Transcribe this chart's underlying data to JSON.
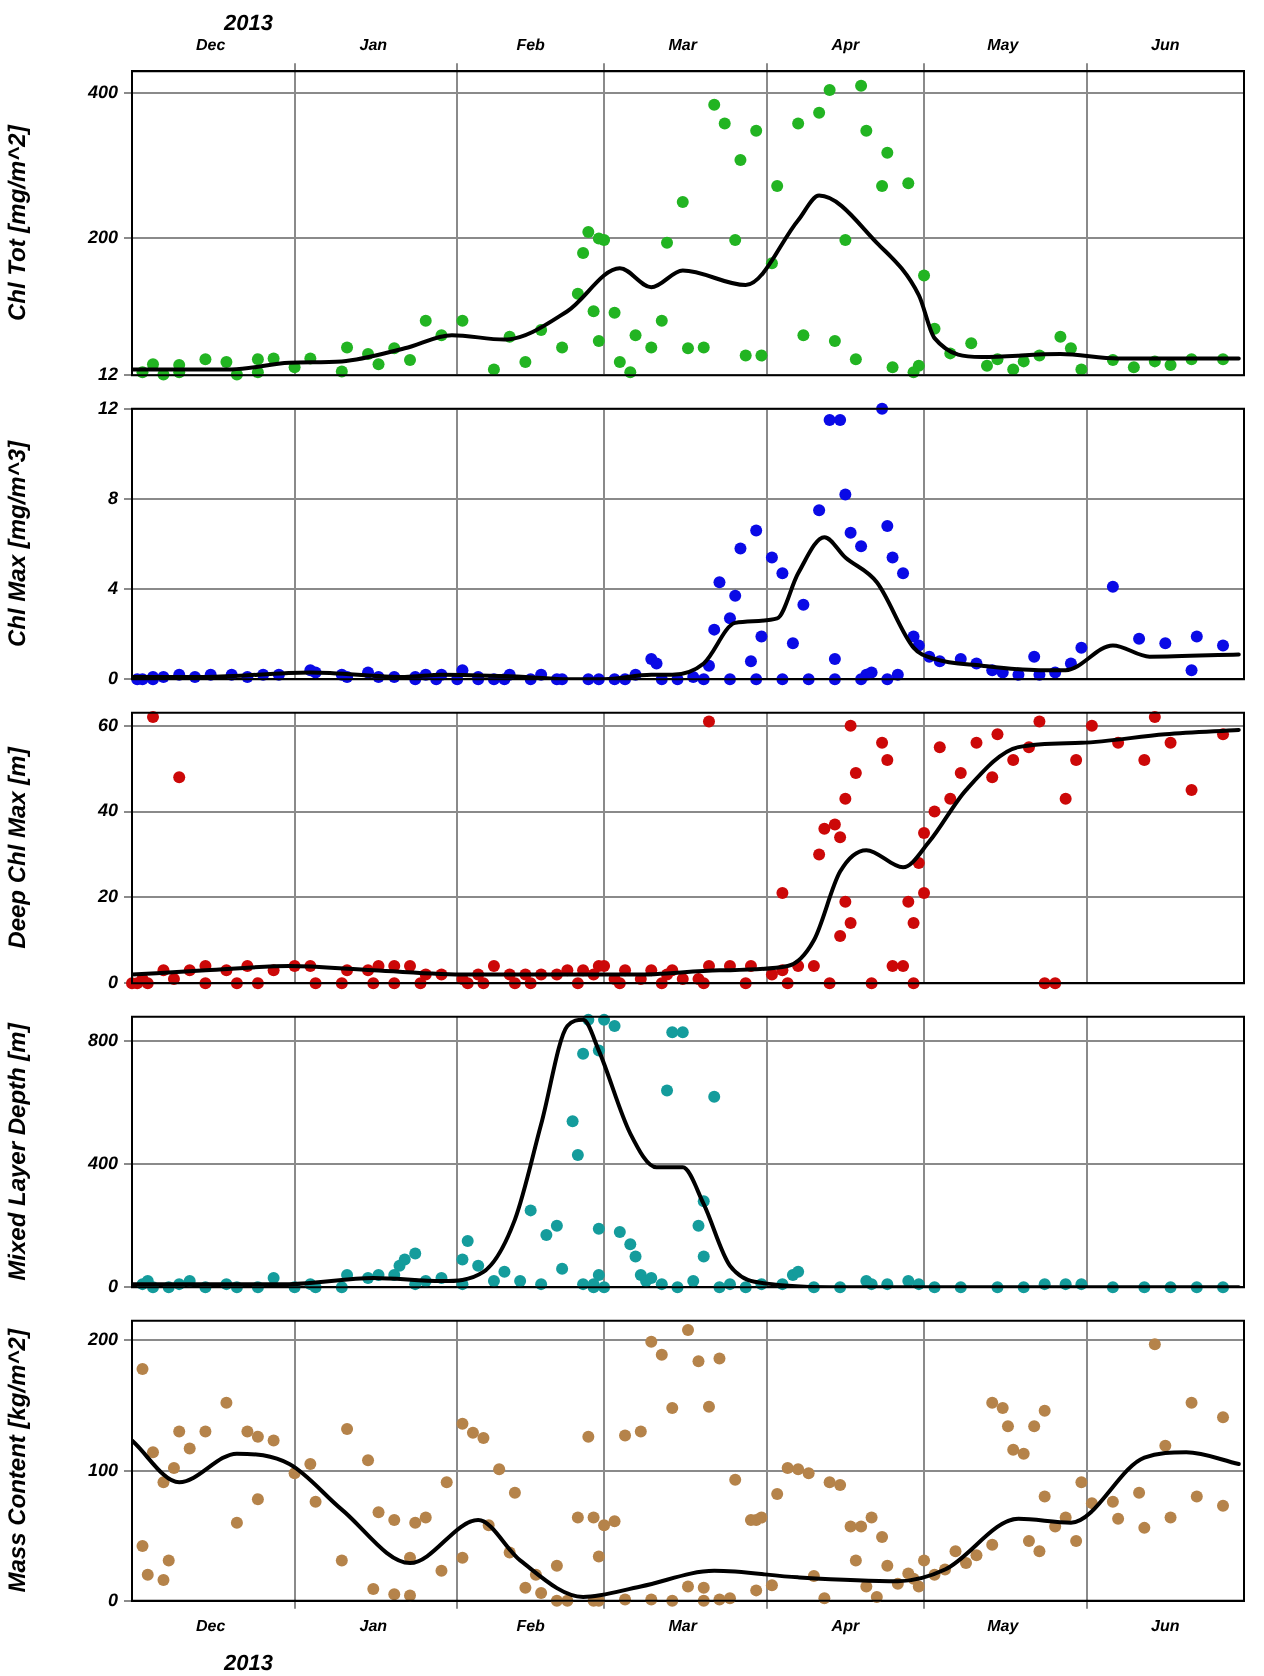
{
  "chart_data": [
    {
      "type": "scatter",
      "ylabel": "Chl Tot [mg/m^2]",
      "annotations": [
        "2013"
      ],
      "grid": true,
      "xlim": [
        "2012-12-01",
        "2013-07-01"
      ],
      "xticks": [
        {
          "value": "2012-12-16",
          "label": "Dec"
        },
        {
          "value": "2013-01-01",
          "label": null
        },
        {
          "value": "2013-01-16",
          "label": "Jan"
        },
        {
          "value": "2013-02-01",
          "label": null
        },
        {
          "value": "2013-02-15",
          "label": "Feb"
        },
        {
          "value": "2013-03-01",
          "label": null
        },
        {
          "value": "2013-03-16",
          "label": "Mar"
        },
        {
          "value": "2013-04-01",
          "label": null
        },
        {
          "value": "2013-04-16",
          "label": "Apr"
        },
        {
          "value": "2013-05-01",
          "label": null
        },
        {
          "value": "2013-05-16",
          "label": "May"
        },
        {
          "value": "2013-06-01",
          "label": null
        },
        {
          "value": "2013-06-16",
          "label": "Jun"
        }
      ],
      "ylim": [
        12,
        430
      ],
      "yticks": [
        12,
        200,
        400
      ],
      "series": [
        {
          "marker": "circle",
          "color": "#22b422",
          "x": [
            "2012-12-03",
            "2012-12-05",
            "2012-12-07",
            "2012-12-10",
            "2012-12-10",
            "2012-12-15",
            "2012-12-19",
            "2012-12-21",
            "2012-12-25",
            "2012-12-25",
            "2012-12-28",
            "2013-01-01",
            "2013-01-04",
            "2013-01-10",
            "2013-01-11",
            "2013-01-15",
            "2013-01-17",
            "2013-01-20",
            "2013-01-23",
            "2013-01-26",
            "2013-01-29",
            "2013-02-02",
            "2013-02-08",
            "2013-02-11",
            "2013-02-14",
            "2013-02-17",
            "2013-02-21",
            "2013-02-24",
            "2013-02-25",
            "2013-02-26",
            "2013-02-28",
            "2013-03-01",
            "2013-02-27",
            "2013-02-28",
            "2013-03-03",
            "2013-03-04",
            "2013-03-06",
            "2013-03-07",
            "2013-03-10",
            "2013-03-12",
            "2013-03-13",
            "2013-03-16",
            "2013-03-17",
            "2013-03-20",
            "2013-03-22",
            "2013-03-24",
            "2013-03-26",
            "2013-03-27",
            "2013-03-30",
            "2013-03-28",
            "2013-03-31",
            "2013-04-02",
            "2013-04-03",
            "2013-04-07",
            "2013-04-08",
            "2013-04-11",
            "2013-04-13",
            "2013-04-14",
            "2013-04-16",
            "2013-04-18",
            "2013-04-19",
            "2013-04-20",
            "2013-04-23",
            "2013-04-24",
            "2013-04-25",
            "2013-04-28",
            "2013-04-30",
            "2013-04-29",
            "2013-05-01",
            "2013-05-03",
            "2013-05-06",
            "2013-05-10",
            "2013-05-13",
            "2013-05-15",
            "2013-05-18",
            "2013-05-20",
            "2013-05-23",
            "2013-05-27",
            "2013-05-29",
            "2013-05-31",
            "2013-06-06",
            "2013-06-10",
            "2013-06-14",
            "2013-06-17",
            "2013-06-21",
            "2013-06-27"
          ],
          "values": [
            16,
            27,
            13,
            16,
            26,
            34,
            30,
            13,
            16,
            34,
            35,
            23,
            35,
            17,
            50,
            41,
            27,
            49,
            33,
            87,
            67,
            87,
            20,
            65,
            30,
            74,
            50,
            124,
            180,
            209,
            200,
            198,
            100,
            59,
            98,
            30,
            16,
            67,
            50,
            87,
            194,
            250,
            49,
            50,
            384,
            358,
            198,
            308,
            348,
            39,
            39,
            166,
            272,
            358,
            67,
            373,
            404,
            59,
            198,
            34,
            410,
            348,
            272,
            318,
            23,
            276,
            25,
            16,
            149,
            76,
            42,
            56,
            25,
            34,
            20,
            31,
            39,
            65,
            49,
            20,
            33,
            23,
            31,
            26,
            34,
            34
          ]
        },
        {
          "type": "line",
          "marker": "none",
          "color": "#000000",
          "x": [
            "2012-12-01",
            "2012-12-20",
            "2012-12-31",
            "2013-01-10",
            "2013-01-22",
            "2013-01-31",
            "2013-02-10",
            "2013-02-22",
            "2013-03-04",
            "2013-03-10",
            "2013-03-16",
            "2013-03-28",
            "2013-04-07",
            "2013-04-11",
            "2013-04-22",
            "2013-04-30",
            "2013-05-03",
            "2013-05-12",
            "2013-05-27",
            "2013-06-07",
            "2013-06-30"
          ],
          "values": [
            20,
            20,
            29,
            31,
            49,
            67,
            61,
            100,
            159,
            133,
            156,
            136,
            225,
            259,
            194,
            122,
            63,
            37,
            41,
            35,
            35
          ]
        }
      ]
    },
    {
      "type": "scatter",
      "ylabel": "Chl Max [mg/m^3]",
      "grid": true,
      "tick_labels": "y",
      "xlim": [
        "2012-12-01",
        "2013-07-01"
      ],
      "xticks": [
        {
          "value": "2013-01-01",
          "label": null
        },
        {
          "value": "2013-02-01",
          "label": null
        },
        {
          "value": "2013-03-01",
          "label": null
        },
        {
          "value": "2013-04-01",
          "label": null
        },
        {
          "value": "2013-05-01",
          "label": null
        },
        {
          "value": "2013-06-01",
          "label": null
        }
      ],
      "ylim": [
        0,
        12
      ],
      "yticks": [
        0,
        4,
        8,
        12
      ],
      "series": [
        {
          "marker": "circle",
          "color": "#0a0ae6",
          "x": [
            "2012-12-03",
            "2012-12-05",
            "2012-12-07",
            "2012-12-10",
            "2012-12-13",
            "2012-12-16",
            "2012-12-20",
            "2012-12-23",
            "2012-12-26",
            "2012-12-29",
            "2013-01-04",
            "2013-01-05",
            "2013-01-10",
            "2013-01-11",
            "2013-01-15",
            "2013-01-17",
            "2013-01-20",
            "2013-01-24",
            "2013-01-26",
            "2013-01-29",
            "2013-02-02",
            "2013-02-05",
            "2013-02-08",
            "2013-02-11",
            "2013-02-17",
            "2013-02-21",
            "2013-02-26",
            "2013-02-28",
            "2013-03-03",
            "2013-03-07",
            "2013-03-10",
            "2013-03-11",
            "2013-03-12",
            "2013-03-15",
            "2013-03-18",
            "2013-03-21",
            "2013-03-22",
            "2013-03-23",
            "2013-03-25",
            "2013-03-26",
            "2013-03-27",
            "2013-03-29",
            "2013-03-30",
            "2013-03-31",
            "2013-04-02",
            "2013-04-04",
            "2013-04-06",
            "2013-04-08",
            "2013-04-11",
            "2013-04-13",
            "2013-04-15",
            "2013-04-14",
            "2013-04-16",
            "2013-04-17",
            "2013-04-19",
            "2013-04-20",
            "2013-04-21",
            "2013-04-23",
            "2013-04-24",
            "2013-04-25",
            "2013-04-26",
            "2013-04-27",
            "2013-04-29",
            "2013-04-30",
            "2013-05-02",
            "2013-05-04",
            "2013-05-08",
            "2013-05-11",
            "2013-05-14",
            "2013-05-16",
            "2013-05-19",
            "2013-05-22",
            "2013-05-23",
            "2013-05-26",
            "2013-05-29",
            "2013-05-31",
            "2013-06-06",
            "2013-06-11",
            "2013-06-16",
            "2013-06-22",
            "2013-06-21",
            "2013-06-27",
            "2012-12-02",
            "2012-12-05",
            "2013-01-24",
            "2013-01-28",
            "2013-02-01",
            "2013-02-05",
            "2013-02-10",
            "2013-02-15",
            "2013-02-20",
            "2013-03-05",
            "2013-03-20",
            "2013-03-25",
            "2013-03-30",
            "2013-04-04",
            "2013-04-09",
            "2013-04-14",
            "2013-04-19",
            "2013-04-24"
          ],
          "values": [
            0,
            0.1,
            0.1,
            0.2,
            0.1,
            0.2,
            0.2,
            0.1,
            0.2,
            0.2,
            0.4,
            0.3,
            0.2,
            0.1,
            0.3,
            0.1,
            0.1,
            0.1,
            0.2,
            0.2,
            0.4,
            0.1,
            0,
            0.2,
            0.2,
            0,
            0,
            0,
            0,
            0.2,
            0.9,
            0.7,
            0,
            0,
            0.1,
            0.6,
            2.2,
            4.3,
            2.7,
            3.7,
            5.8,
            0.8,
            6.6,
            1.9,
            5.4,
            4.7,
            1.6,
            3.3,
            7.5,
            11.5,
            11.5,
            0.9,
            8.2,
            6.5,
            5.9,
            0.2,
            0.3,
            12,
            6.8,
            5.4,
            0.2,
            4.7,
            1.9,
            1.5,
            1,
            0.8,
            0.9,
            0.7,
            0.4,
            0.3,
            0.2,
            1,
            0.2,
            0.3,
            0.7,
            1.4,
            4.1,
            1.8,
            1.6,
            1.9,
            0.4,
            1.5,
            0,
            0,
            0,
            0,
            0,
            0,
            0,
            0,
            0,
            0,
            0,
            0,
            0,
            0,
            0,
            0,
            0,
            0
          ]
        },
        {
          "type": "line",
          "marker": "none",
          "color": "#000000",
          "x": [
            "2012-12-01",
            "2012-12-15",
            "2013-01-04",
            "2013-01-22",
            "2013-01-29",
            "2013-02-14",
            "2013-02-22",
            "2013-03-01",
            "2013-03-10",
            "2013-03-14",
            "2013-03-20",
            "2013-03-26",
            "2013-04-03",
            "2013-04-07",
            "2013-04-12",
            "2013-04-16",
            "2013-04-22",
            "2013-04-29",
            "2013-05-03",
            "2013-05-12",
            "2013-05-23",
            "2013-05-28",
            "2013-06-06",
            "2013-06-13",
            "2013-06-30"
          ],
          "values": [
            0.1,
            0.1,
            0.3,
            0.1,
            0.2,
            0.1,
            0,
            0,
            0.2,
            0.2,
            0.7,
            2.5,
            2.7,
            4.7,
            6.3,
            5.4,
            4.3,
            1.4,
            0.9,
            0.6,
            0.4,
            0.4,
            1.5,
            1,
            1.1
          ]
        }
      ]
    },
    {
      "type": "scatter",
      "ylabel": "Deep Chl Max [m]",
      "grid": true,
      "tick_labels": "y",
      "xlim": [
        "2012-12-01",
        "2013-07-01"
      ],
      "xticks": [
        {
          "value": "2013-01-01",
          "label": null
        },
        {
          "value": "2013-02-01",
          "label": null
        },
        {
          "value": "2013-03-01",
          "label": null
        },
        {
          "value": "2013-04-01",
          "label": null
        },
        {
          "value": "2013-05-01",
          "label": null
        },
        {
          "value": "2013-06-01",
          "label": null
        }
      ],
      "ylim": [
        0,
        63
      ],
      "yticks": [
        0,
        20,
        40,
        60
      ],
      "series": [
        {
          "marker": "circle",
          "color": "#cc0808",
          "x": [
            "2012-12-02",
            "2012-12-05",
            "2012-12-03",
            "2012-12-07",
            "2012-12-10",
            "2012-12-09",
            "2012-12-15",
            "2012-12-12",
            "2012-12-15",
            "2012-12-19",
            "2012-12-21",
            "2012-12-23",
            "2012-12-25",
            "2012-12-28",
            "2013-01-01",
            "2013-01-04",
            "2013-01-05",
            "2013-01-11",
            "2013-01-10",
            "2013-01-15",
            "2013-01-16",
            "2013-01-17",
            "2013-01-20",
            "2013-01-23",
            "2013-01-20",
            "2013-01-26",
            "2013-01-29",
            "2013-02-02",
            "2013-02-05",
            "2013-02-08",
            "2013-02-11",
            "2013-02-14",
            "2013-02-17",
            "2013-02-20",
            "2013-02-22",
            "2013-02-25",
            "2013-02-27",
            "2013-02-28",
            "2013-03-01",
            "2013-03-03",
            "2013-03-05",
            "2013-03-08",
            "2013-03-10",
            "2013-03-14",
            "2013-03-13",
            "2013-03-16",
            "2013-03-19",
            "2013-03-21",
            "2013-03-21",
            "2013-03-25",
            "2013-03-29",
            "2013-04-02",
            "2013-04-04",
            "2013-04-04",
            "2013-04-07",
            "2013-04-10",
            "2013-04-11",
            "2013-04-12",
            "2013-04-14",
            "2013-04-15",
            "2013-04-16",
            "2013-04-17",
            "2013-04-18",
            "2013-04-15",
            "2013-04-17",
            "2013-04-16",
            "2013-04-23",
            "2013-04-24",
            "2013-04-25",
            "2013-04-27",
            "2013-04-28",
            "2013-04-29",
            "2013-04-30",
            "2013-05-01",
            "2013-05-01",
            "2013-05-03",
            "2013-05-04",
            "2013-05-06",
            "2013-05-08",
            "2013-05-11",
            "2013-05-14",
            "2013-05-15",
            "2013-05-18",
            "2013-05-21",
            "2013-05-23",
            "2013-05-24",
            "2013-05-26",
            "2013-05-28",
            "2013-05-30",
            "2013-06-02",
            "2013-06-07",
            "2013-06-12",
            "2013-06-14",
            "2013-06-17",
            "2013-06-21",
            "2013-06-27",
            "2013-02-06",
            "2013-02-15",
            "2013-02-24",
            "2013-03-04",
            "2013-03-12",
            "2013-03-20",
            "2013-03-28",
            "2013-04-05",
            "2013-04-13",
            "2013-04-21",
            "2013-04-29",
            "2012-12-01",
            "2012-12-04",
            "2013-01-25",
            "2013-02-03",
            "2013-02-12"
          ],
          "values": [
            0,
            62,
            1,
            3,
            48,
            1,
            0,
            3,
            4,
            3,
            0,
            4,
            0,
            3,
            4,
            4,
            0,
            3,
            0,
            3,
            0,
            4,
            4,
            4,
            0,
            2,
            2,
            1,
            2,
            4,
            2,
            2,
            2,
            2,
            3,
            3,
            2,
            4,
            4,
            1,
            3,
            1,
            3,
            3,
            2,
            1,
            1,
            61,
            4,
            4,
            4,
            2,
            3,
            21,
            4,
            4,
            30,
            36,
            37,
            34,
            43,
            60,
            49,
            11,
            14,
            19,
            56,
            52,
            4,
            4,
            19,
            14,
            28,
            35,
            21,
            40,
            55,
            43,
            49,
            56,
            48,
            58,
            52,
            55,
            61,
            0,
            0,
            43,
            52,
            60,
            56,
            52,
            62,
            56,
            45,
            58,
            0,
            0,
            0,
            0,
            0,
            0,
            0,
            0,
            0,
            0,
            0,
            0,
            0,
            0,
            0,
            0
          ]
        },
        {
          "type": "line",
          "marker": "none",
          "color": "#000000",
          "x": [
            "2012-12-01",
            "2012-12-15",
            "2012-12-31",
            "2013-01-16",
            "2013-02-03",
            "2013-02-22",
            "2013-03-07",
            "2013-03-23",
            "2013-04-05",
            "2013-04-10",
            "2013-04-15",
            "2013-04-20",
            "2013-04-27",
            "2013-05-02",
            "2013-05-09",
            "2013-05-19",
            "2013-05-31",
            "2013-06-16",
            "2013-06-30"
          ],
          "values": [
            2,
            3,
            4,
            3,
            2,
            2,
            2,
            3,
            4,
            10,
            26,
            31,
            27,
            33,
            45,
            55,
            56,
            58,
            59
          ]
        }
      ]
    },
    {
      "type": "scatter",
      "ylabel": "Mixed Layer Depth [m]",
      "grid": true,
      "tick_labels": "y",
      "xlim": [
        "2012-12-01",
        "2013-07-01"
      ],
      "xticks": [
        {
          "value": "2013-01-01",
          "label": null
        },
        {
          "value": "2013-02-01",
          "label": null
        },
        {
          "value": "2013-03-01",
          "label": null
        },
        {
          "value": "2013-04-01",
          "label": null
        },
        {
          "value": "2013-05-01",
          "label": null
        },
        {
          "value": "2013-06-01",
          "label": null
        }
      ],
      "ylim": [
        0,
        880
      ],
      "yticks": [
        0,
        400,
        800
      ],
      "series": [
        {
          "marker": "circle",
          "color": "#149c9c",
          "x": [
            "2012-12-03",
            "2012-12-04",
            "2012-12-05",
            "2012-12-08",
            "2012-12-10",
            "2012-12-12",
            "2012-12-15",
            "2012-12-19",
            "2012-12-21",
            "2012-12-25",
            "2012-12-28",
            "2013-01-01",
            "2013-01-04",
            "2013-01-05",
            "2013-01-10",
            "2013-01-11",
            "2013-01-15",
            "2013-01-17",
            "2013-01-20",
            "2013-01-21",
            "2013-01-22",
            "2013-01-24",
            "2013-01-24",
            "2013-01-26",
            "2013-01-29",
            "2013-02-02",
            "2013-02-02",
            "2013-02-03",
            "2013-02-05",
            "2013-02-08",
            "2013-02-10",
            "2013-02-13",
            "2013-02-15",
            "2013-02-17",
            "2013-02-18",
            "2013-02-20",
            "2013-02-21",
            "2013-02-23",
            "2013-02-24",
            "2013-02-25",
            "2013-02-26",
            "2013-02-25",
            "2013-02-27",
            "2013-02-28",
            "2013-02-27",
            "2013-02-28",
            "2013-02-28",
            "2013-03-01",
            "2013-03-03",
            "2013-03-01",
            "2013-03-04",
            "2013-03-06",
            "2013-03-07",
            "2013-03-08",
            "2013-03-09",
            "2013-03-10",
            "2013-03-12",
            "2013-03-13",
            "2013-03-14",
            "2013-03-16",
            "2013-03-15",
            "2013-03-18",
            "2013-03-19",
            "2013-03-20",
            "2013-03-20",
            "2013-03-22",
            "2013-03-23",
            "2013-03-25",
            "2013-03-28",
            "2013-03-31",
            "2013-04-04",
            "2013-04-06",
            "2013-04-07",
            "2013-04-10",
            "2013-04-15",
            "2013-04-20",
            "2013-04-21",
            "2013-04-24",
            "2013-04-28",
            "2013-04-30",
            "2013-05-03",
            "2013-05-08",
            "2013-05-15",
            "2013-05-20",
            "2013-05-24",
            "2013-05-28",
            "2013-05-31",
            "2013-06-06",
            "2013-06-12",
            "2013-06-17",
            "2013-06-22",
            "2013-06-27"
          ],
          "values": [
            10,
            20,
            0,
            0,
            10,
            20,
            0,
            10,
            0,
            0,
            30,
            0,
            10,
            0,
            0,
            40,
            30,
            40,
            40,
            70,
            90,
            110,
            10,
            20,
            30,
            90,
            10,
            150,
            70,
            20,
            50,
            20,
            250,
            10,
            170,
            200,
            60,
            540,
            430,
            10,
            870,
            760,
            10,
            770,
            0,
            190,
            40,
            870,
            850,
            0,
            180,
            140,
            100,
            40,
            20,
            30,
            10,
            640,
            830,
            830,
            0,
            20,
            200,
            100,
            280,
            620,
            0,
            10,
            0,
            10,
            10,
            40,
            50,
            0,
            0,
            20,
            10,
            10,
            20,
            10,
            0,
            0,
            0,
            0,
            10,
            10,
            10,
            0,
            0,
            0,
            0,
            0
          ]
        },
        {
          "type": "line",
          "marker": "none",
          "color": "#000000",
          "x": [
            "2012-12-01",
            "2012-12-15",
            "2012-12-31",
            "2013-01-16",
            "2013-01-29",
            "2013-02-06",
            "2013-02-12",
            "2013-02-17",
            "2013-02-22",
            "2013-02-25",
            "2013-02-28",
            "2013-03-06",
            "2013-03-11",
            "2013-03-16",
            "2013-03-20",
            "2013-03-25",
            "2013-04-02",
            "2013-04-15",
            "2013-04-26",
            "2013-05-08",
            "2013-05-23",
            "2013-05-31",
            "2013-06-08",
            "2013-06-30"
          ],
          "values": [
            10,
            10,
            10,
            30,
            20,
            50,
            220,
            530,
            850,
            870,
            770,
            500,
            390,
            390,
            270,
            70,
            10,
            0,
            0,
            0,
            0,
            0,
            0,
            0
          ]
        }
      ]
    },
    {
      "type": "scatter",
      "ylabel": "Mass Content [kg/m^2]",
      "annotations": [
        "2013"
      ],
      "grid": true,
      "xlim": [
        "2012-12-01",
        "2013-07-01"
      ],
      "xticks": [
        {
          "value": "2012-12-16",
          "label": "Dec"
        },
        {
          "value": "2013-01-01",
          "label": null
        },
        {
          "value": "2013-01-16",
          "label": "Jan"
        },
        {
          "value": "2013-02-01",
          "label": null
        },
        {
          "value": "2013-02-15",
          "label": "Feb"
        },
        {
          "value": "2013-03-01",
          "label": null
        },
        {
          "value": "2013-03-16",
          "label": "Mar"
        },
        {
          "value": "2013-04-01",
          "label": null
        },
        {
          "value": "2013-04-16",
          "label": "Apr"
        },
        {
          "value": "2013-05-01",
          "label": null
        },
        {
          "value": "2013-05-16",
          "label": "May"
        },
        {
          "value": "2013-06-01",
          "label": null
        },
        {
          "value": "2013-06-16",
          "label": "Jun"
        }
      ],
      "ylim": [
        0,
        215
      ],
      "yticks": [
        0,
        100,
        200
      ],
      "series": [
        {
          "marker": "circle",
          "color": "#b5834a",
          "x": [
            "2012-12-03",
            "2012-12-03",
            "2012-12-04",
            "2012-12-05",
            "2012-12-07",
            "2012-12-07",
            "2012-12-08",
            "2012-12-09",
            "2012-12-10",
            "2012-12-12",
            "2012-12-15",
            "2012-12-19",
            "2012-12-21",
            "2012-12-23",
            "2012-12-25",
            "2012-12-25",
            "2012-12-28",
            "2013-01-01",
            "2013-01-04",
            "2013-01-05",
            "2013-01-10",
            "2013-01-11",
            "2013-01-15",
            "2013-01-16",
            "2013-01-17",
            "2013-01-20",
            "2013-01-20",
            "2013-01-23",
            "2013-01-23",
            "2013-01-24",
            "2013-01-26",
            "2013-01-29",
            "2013-01-30",
            "2013-02-02",
            "2013-02-02",
            "2013-02-04",
            "2013-02-06",
            "2013-02-07",
            "2013-02-09",
            "2013-02-11",
            "2013-02-12",
            "2013-02-14",
            "2013-02-16",
            "2013-02-17",
            "2013-02-20",
            "2013-02-20",
            "2013-02-22",
            "2013-02-24",
            "2013-02-26",
            "2013-02-27",
            "2013-02-27",
            "2013-02-28",
            "2013-02-28",
            "2013-03-01",
            "2013-03-03",
            "2013-03-05",
            "2013-03-05",
            "2013-03-08",
            "2013-03-10",
            "2013-03-10",
            "2013-03-12",
            "2013-03-14",
            "2013-03-14",
            "2013-03-17",
            "2013-03-19",
            "2013-03-21",
            "2013-03-23",
            "2013-03-17",
            "2013-03-20",
            "2013-03-20",
            "2013-03-23",
            "2013-03-25",
            "2013-03-26",
            "2013-03-29",
            "2013-03-30",
            "2013-03-31",
            "2013-03-30",
            "2013-04-02",
            "2013-04-03",
            "2013-04-05",
            "2013-04-07",
            "2013-04-09",
            "2013-04-10",
            "2013-04-12",
            "2013-04-13",
            "2013-04-15",
            "2013-04-17",
            "2013-04-18",
            "2013-04-19",
            "2013-04-20",
            "2013-04-21",
            "2013-04-22",
            "2013-04-23",
            "2013-04-24",
            "2013-04-26",
            "2013-04-28",
            "2013-04-29",
            "2013-04-30",
            "2013-05-01",
            "2013-05-03",
            "2013-05-05",
            "2013-05-07",
            "2013-05-09",
            "2013-05-11",
            "2013-05-14",
            "2013-05-14",
            "2013-05-16",
            "2013-05-17",
            "2013-05-18",
            "2013-05-20",
            "2013-05-21",
            "2013-05-22",
            "2013-05-23",
            "2013-05-24",
            "2013-05-24",
            "2013-05-26",
            "2013-05-28",
            "2013-05-30",
            "2013-05-31",
            "2013-06-02",
            "2013-06-06",
            "2013-06-07",
            "2013-06-11",
            "2013-06-12",
            "2013-06-14",
            "2013-06-16",
            "2013-06-17",
            "2013-06-21",
            "2013-06-22",
            "2013-06-27",
            "2013-06-27"
          ],
          "values": [
            42,
            178,
            20,
            114,
            16,
            91,
            31,
            102,
            130,
            117,
            130,
            152,
            60,
            130,
            78,
            126,
            123,
            98,
            105,
            76,
            31,
            132,
            108,
            9,
            68,
            62,
            5,
            4,
            33,
            60,
            64,
            23,
            91,
            33,
            136,
            129,
            125,
            58,
            101,
            37,
            83,
            10,
            20,
            6,
            27,
            0,
            0,
            64,
            126,
            0,
            64,
            34,
            0,
            58,
            61,
            127,
            1,
            130,
            199,
            1,
            189,
            148,
            0,
            208,
            184,
            149,
            186,
            11,
            10,
            0,
            1,
            2,
            93,
            62,
            62,
            64,
            8,
            12,
            82,
            102,
            101,
            98,
            19,
            2,
            91,
            89,
            57,
            31,
            57,
            11,
            64,
            3,
            49,
            27,
            13,
            21,
            17,
            11,
            31,
            20,
            24,
            38,
            29,
            35,
            43,
            152,
            148,
            134,
            116,
            113,
            46,
            134,
            38,
            146,
            80,
            57,
            64,
            46,
            91,
            75,
            76,
            63,
            83,
            56,
            197,
            119,
            64,
            152,
            80,
            141,
            73
          ]
        },
        {
          "type": "line",
          "marker": "none",
          "color": "#000000",
          "x": [
            "2012-12-01",
            "2012-12-10",
            "2012-12-21",
            "2012-12-31",
            "2013-01-10",
            "2013-01-23",
            "2013-02-05",
            "2013-02-13",
            "2013-02-25",
            "2013-03-08",
            "2013-03-22",
            "2013-04-07",
            "2013-04-26",
            "2013-05-05",
            "2013-05-19",
            "2013-05-29",
            "2013-06-12",
            "2013-06-20",
            "2013-06-30"
          ],
          "values": [
            123,
            91,
            113,
            105,
            70,
            29,
            62,
            31,
            3,
            11,
            23,
            18,
            15,
            24,
            63,
            60,
            110,
            114,
            105
          ]
        }
      ]
    }
  ]
}
